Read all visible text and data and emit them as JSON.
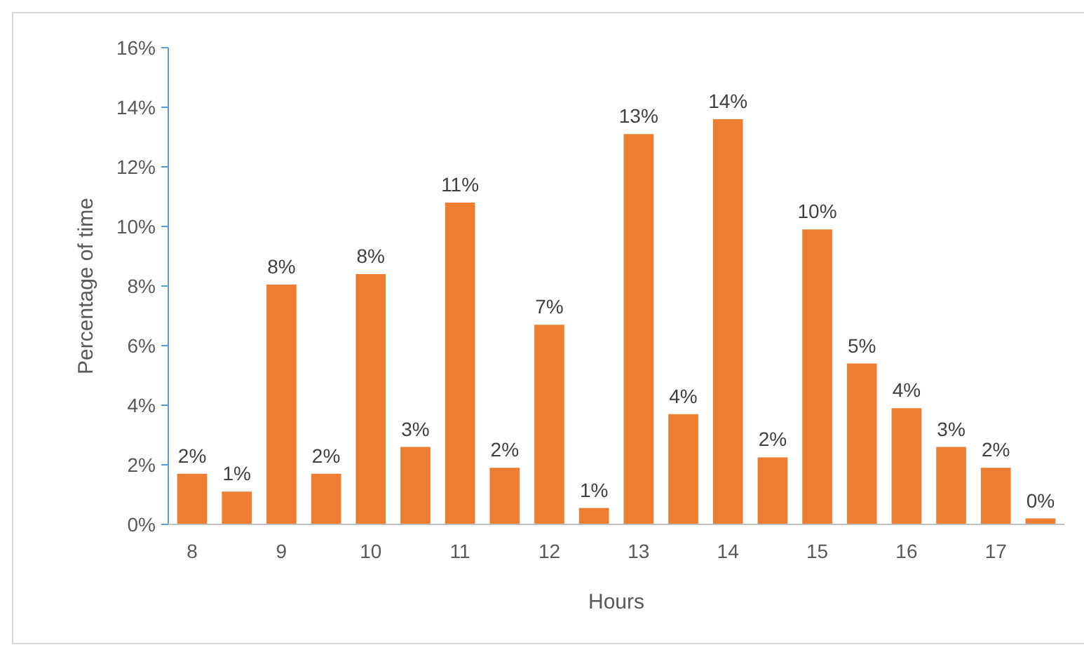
{
  "chart_data": {
    "type": "bar",
    "xlabel": "Hours",
    "ylabel": "Percentage of time",
    "categories": [
      "8",
      null,
      "9",
      null,
      "10",
      null,
      "11",
      null,
      "12",
      null,
      "13",
      null,
      "14",
      null,
      "15",
      null,
      "16",
      null,
      "17",
      null
    ],
    "values": [
      1.7,
      1.1,
      8.05,
      1.7,
      8.4,
      2.6,
      10.8,
      1.9,
      6.7,
      0.55,
      13.1,
      3.7,
      13.6,
      2.25,
      9.9,
      5.4,
      3.9,
      2.6,
      1.9,
      0.2
    ],
    "value_labels": [
      "2%",
      "1%",
      "8%",
      "2%",
      "8%",
      "3%",
      "11%",
      "2%",
      "7%",
      "1%",
      "13%",
      "4%",
      "14%",
      "2%",
      "10%",
      "5%",
      "4%",
      "3%",
      "2%",
      "0%"
    ],
    "color": "#ed7d31",
    "ylim": [
      0,
      16
    ],
    "yticks": [
      {
        "value": 0,
        "label": "0%"
      },
      {
        "value": 2,
        "label": "2%"
      },
      {
        "value": 4,
        "label": "4%"
      },
      {
        "value": 6,
        "label": "6%"
      },
      {
        "value": 8,
        "label": "8%"
      },
      {
        "value": 10,
        "label": "10%"
      },
      {
        "value": 12,
        "label": "12%"
      },
      {
        "value": 14,
        "label": "14%"
      },
      {
        "value": 16,
        "label": "16%"
      }
    ],
    "grid": false
  }
}
